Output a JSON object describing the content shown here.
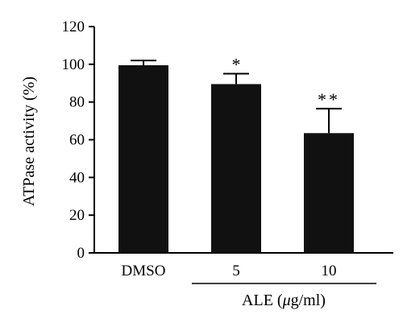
{
  "chart_data": {
    "type": "bar",
    "title": "",
    "xlabel": "",
    "ylabel": "ATPase activity (%)",
    "ylim": [
      0,
      120
    ],
    "yticks": [
      0,
      20,
      40,
      60,
      80,
      100,
      120
    ],
    "categories": [
      "DMSO",
      "5",
      "10"
    ],
    "values": [
      99.5,
      89.5,
      63.5
    ],
    "error_upper": [
      2.5,
      5.5,
      13.0
    ],
    "significance": [
      "",
      "*",
      "**"
    ],
    "group_label": "ALE (μg/ml)",
    "group_members": [
      "5",
      "10"
    ],
    "bar_color": "#111111",
    "grid": false,
    "legend": "none"
  }
}
